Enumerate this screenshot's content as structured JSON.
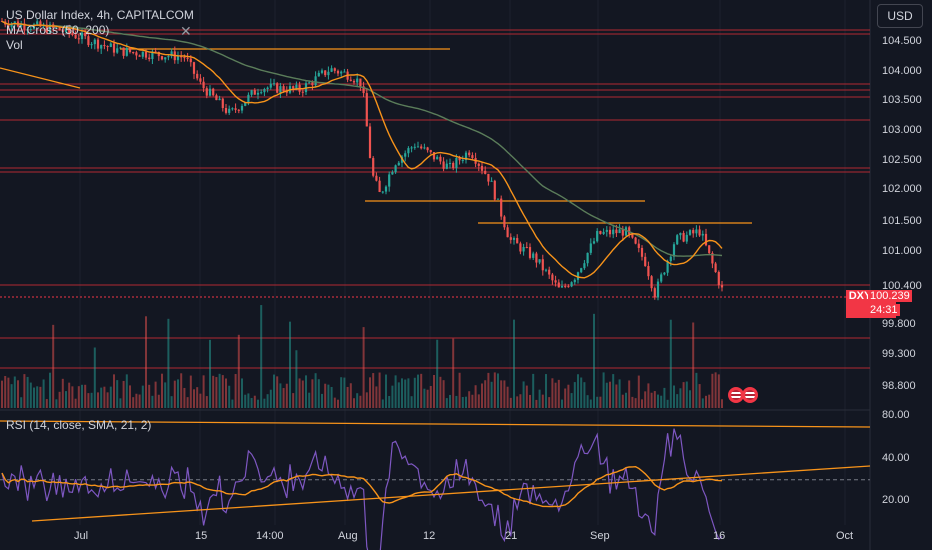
{
  "legend": {
    "symbol_line": "US Dollar Index, 4h, CAPITALCOM",
    "ma_label": "MA Cross (50, 200)",
    "vol_label": "Vol"
  },
  "rsi_legend": "RSI (14, close, SMA, 21, 2)",
  "currency_button": "USD",
  "price_axis_labels": [
    "104.500",
    "104.000",
    "103.500",
    "103.000",
    "102.500",
    "102.000",
    "101.500",
    "101.000",
    "99.800",
    "99.300",
    "98.800"
  ],
  "partial_tick": "100.400",
  "rsi_axis_labels": [
    "80.00",
    "40.00",
    "20.00"
  ],
  "x_axis_labels": [
    "Jul",
    "15",
    "14:00",
    "Aug",
    "12",
    "21",
    "Sep",
    "16",
    "Oct"
  ],
  "price_tag": {
    "ticker": "DXY",
    "price": "100.239",
    "countdown": "24:31"
  },
  "icons": [
    "us-flag-icon",
    "us-flag-icon"
  ],
  "colors": {
    "background": "#131722",
    "up": "#26a69a",
    "down": "#ef5350",
    "ma50": "#f7931a",
    "ma200": "#5b7d5a",
    "rsi": "#7e57c2",
    "rsi_ma": "#f7931a",
    "hline": "#b22833",
    "trend": "#f7931a"
  },
  "chart_data": {
    "type": "candlestick",
    "title": "US Dollar Index, 4h, CAPITALCOM",
    "y_range": [
      98.5,
      104.9
    ],
    "last_price": 100.239,
    "key_points": [
      {
        "x": "Jul",
        "y": 104.9
      },
      {
        "x": "15",
        "y": 104.0
      },
      {
        "x": "14:00",
        "y": 103.6
      },
      {
        "x": "Aug",
        "y": 104.1
      },
      {
        "x": "Aug",
        "y": 101.9
      },
      {
        "x": "12",
        "y": 102.9
      },
      {
        "x": "21",
        "y": 101.0
      },
      {
        "x": "21",
        "y": 100.3
      },
      {
        "x": "Sep",
        "y": 101.4
      },
      {
        "x": "Sep",
        "y": 100.6
      },
      {
        "x": "16",
        "y": 101.4
      },
      {
        "x": "16",
        "y": 100.24
      }
    ],
    "horizontal_levels": [
      104.4,
      101.8,
      101.45,
      100.4
    ],
    "rsi": {
      "axis_ticks": [
        80,
        40,
        20
      ],
      "range": [
        10,
        85
      ]
    }
  }
}
